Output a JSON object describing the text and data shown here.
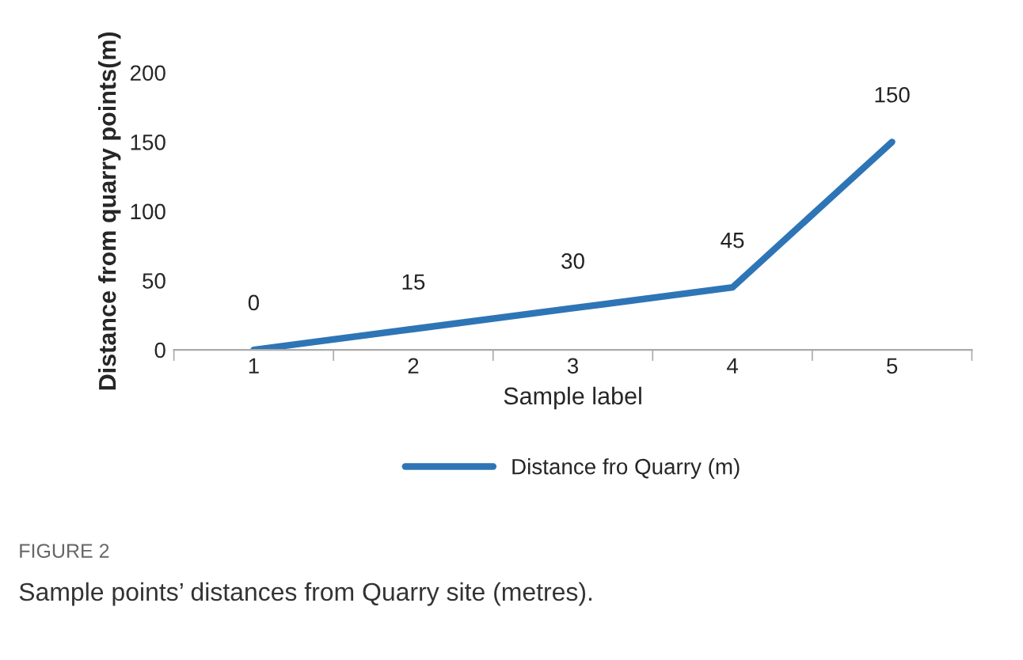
{
  "chart_data": {
    "type": "line",
    "categories": [
      "1",
      "2",
      "3",
      "4",
      "5"
    ],
    "series": [
      {
        "name": "Distance fro Quarry (m)",
        "color": "#2e75b6",
        "values": [
          0,
          15,
          30,
          45,
          150
        ]
      }
    ],
    "ylabel": "Distance from quarry points(m)",
    "xlabel": "Sample label",
    "ylim": [
      0,
      200
    ],
    "yticks": [
      0,
      50,
      100,
      150,
      200
    ],
    "grid": false,
    "legend": "bottom",
    "data_labels": true,
    "marker": "none",
    "line_style": "solid",
    "annotations": [
      "FIGURE 2",
      "Sample points’ distances from Quarry site (metres)."
    ]
  }
}
